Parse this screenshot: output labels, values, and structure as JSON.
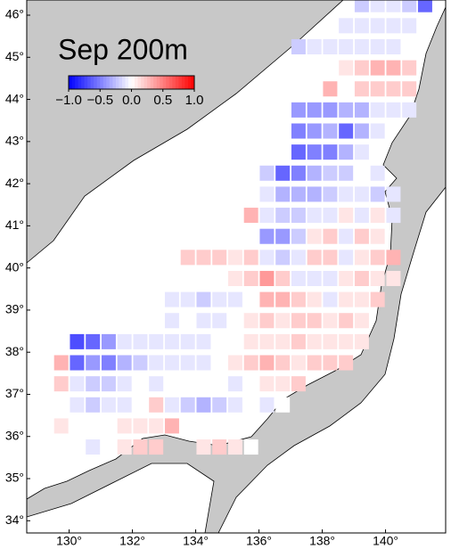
{
  "chart_data": {
    "type": "heatmap_map",
    "title": "Sep 200m",
    "xlim": [
      128.66,
      141.9
    ],
    "ylim": [
      33.71,
      46.36
    ],
    "xticks": [
      {
        "value": 130,
        "label": "130°"
      },
      {
        "value": 132,
        "label": "132°"
      },
      {
        "value": 134,
        "label": "134°"
      },
      {
        "value": 136,
        "label": "136°"
      },
      {
        "value": 138,
        "label": "138°"
      },
      {
        "value": 140,
        "label": "140°"
      }
    ],
    "yticks": [
      {
        "value": 34,
        "label": "34°"
      },
      {
        "value": 35,
        "label": "35°"
      },
      {
        "value": 36,
        "label": "36°"
      },
      {
        "value": 37,
        "label": "37°"
      },
      {
        "value": 38,
        "label": "38°"
      },
      {
        "value": 39,
        "label": "39°"
      },
      {
        "value": 40,
        "label": "40°"
      },
      {
        "value": 41,
        "label": "41°"
      },
      {
        "value": 42,
        "label": "42°"
      },
      {
        "value": 43,
        "label": "43°"
      },
      {
        "value": 44,
        "label": "44°"
      },
      {
        "value": 45,
        "label": "45°"
      },
      {
        "value": 46,
        "label": "46°"
      }
    ],
    "colormap": [
      "#0000ff",
      "#ffffff",
      "#ff0000"
    ],
    "clim": [
      -1,
      1
    ],
    "cticks": [
      {
        "value": -1,
        "label": "−1.0"
      },
      {
        "value": -0.5,
        "label": "−0.5"
      },
      {
        "value": 0,
        "label": "0.0"
      },
      {
        "value": 0.5,
        "label": "0.5"
      },
      {
        "value": 1,
        "label": "1.0"
      }
    ],
    "rows": [
      {
        "lat": 46.25,
        "lon_start": 139.25,
        "values": [
          -0.2,
          -0.1,
          -0.1,
          -0.2,
          -0.6
        ]
      },
      {
        "lat": 45.75,
        "lon_start": 138.75,
        "values": [
          -0.1,
          -0.1,
          -0.1,
          -0.1,
          -0.1
        ]
      },
      {
        "lat": 45.25,
        "lon_start": 137.25,
        "values": [
          -0.2,
          -0.1,
          -0.1,
          -0.1,
          -0.1,
          -0.1,
          -0.1
        ]
      },
      {
        "lat": 44.75,
        "lon_start": 138.75,
        "values": [
          0.1,
          0.2,
          0.3,
          0.3,
          0.2
        ]
      },
      {
        "lat": 44.25,
        "lon_start": 138.25,
        "values": [
          0.3,
          0,
          0.2,
          0.2,
          0.2,
          0.2
        ]
      },
      {
        "lat": 43.75,
        "lon_start": 137.25,
        "values": [
          -0.4,
          -0.4,
          -0.4,
          -0.3,
          -0.3,
          -0.1,
          -0.1,
          -0.1
        ]
      },
      {
        "lat": 43.25,
        "lon_start": 137.25,
        "values": [
          -0.5,
          -0.4,
          -0.3,
          -0.6,
          -0.3,
          -0.1
        ]
      },
      {
        "lat": 42.75,
        "lon_start": 137.25,
        "values": [
          -0.6,
          -0.5,
          -0.5,
          -0.3,
          -0.1
        ]
      },
      {
        "lat": 42.25,
        "lon_start": 136.25,
        "values": [
          -0.2,
          -0.6,
          -0.5,
          -0.3,
          -0.2,
          -0.2,
          0,
          -0.1
        ]
      },
      {
        "lat": 41.75,
        "lon_start": 136.25,
        "values": [
          -0.1,
          -0.3,
          -0.3,
          -0.3,
          -0.2,
          -0.1,
          -0.1,
          -0.2,
          -0.1
        ]
      },
      {
        "lat": 41.25,
        "lon_start": 135.75,
        "values": [
          0.3,
          -0.1,
          -0.2,
          -0.2,
          -0.1,
          -0.1,
          0.1,
          -0.1,
          0.1,
          -0.1
        ]
      },
      {
        "lat": 40.75,
        "lon_start": 135.75,
        "values": [
          0,
          -0.4,
          -0.4,
          -0.2,
          0.1,
          0.2,
          -0.1,
          0.2,
          0.1
        ]
      },
      {
        "lat": 40.25,
        "lon_start": 133.75,
        "values": [
          0.2,
          0.2,
          0.2,
          0.1,
          0.2,
          -0.1,
          -0.2,
          -0.1,
          0.2,
          0.2,
          -0.1,
          0.1,
          0.2,
          0.3
        ]
      },
      {
        "lat": 39.75,
        "lon_start": 133.75,
        "values": [
          0,
          0,
          0,
          0.1,
          0.2,
          0.4,
          0.2,
          -0.1,
          -0.1,
          -0.1,
          0.1,
          0.2,
          0.1,
          0.1
        ]
      },
      {
        "lat": 39.25,
        "lon_start": 132.25,
        "values": [
          0,
          0,
          -0.1,
          -0.1,
          -0.2,
          -0.1,
          -0.1,
          0,
          0.3,
          0.3,
          0.2,
          0.1,
          -0.1,
          0.1,
          0.1,
          0.2
        ]
      },
      {
        "lat": 38.75,
        "lon_start": 131.75,
        "values": [
          0,
          0,
          0,
          -0.1,
          0,
          -0.1,
          -0.1,
          0,
          0.1,
          0.2,
          0.1,
          0.2,
          0.2,
          0.1,
          0.2,
          0.1
        ]
      },
      {
        "lat": 38.25,
        "lon_start": 130.25,
        "values": [
          -0.7,
          -0.6,
          -0.4,
          -0.1,
          -0.1,
          -0.1,
          -0.1,
          -0.1,
          -0.1,
          0,
          0,
          0.1,
          0.1,
          0.1,
          0.2,
          0.1,
          0.1,
          0.1,
          0.1
        ]
      },
      {
        "lat": 37.75,
        "lon_start": 129.75,
        "values": [
          0.3,
          -0.6,
          -0.4,
          -0.5,
          -0.3,
          -0.2,
          -0.1,
          -0.1,
          -0.1,
          -0.1,
          0,
          0.1,
          0.2,
          0.3,
          0.2,
          0.1,
          0.2,
          0.2,
          0.2
        ]
      },
      {
        "lat": 37.25,
        "lon_start": 129.75,
        "values": [
          0.2,
          -0.1,
          -0.2,
          -0.2,
          -0.1,
          0,
          -0.1,
          0,
          0,
          0,
          0,
          -0.1,
          0,
          0.1,
          0.1,
          0.2
        ]
      },
      {
        "lat": 36.75,
        "lon_start": 129.75,
        "values": [
          0,
          -0.1,
          -0.2,
          -0.1,
          -0.1,
          0,
          0.2,
          -0.1,
          -0.2,
          -0.3,
          -0.2,
          -0.1,
          0,
          -0.1,
          0
        ]
      },
      {
        "lat": 36.25,
        "lon_start": 129.75,
        "values": [
          0.1,
          0,
          0,
          0,
          0.1,
          0.1,
          0.1,
          0.3
        ]
      },
      {
        "lat": 35.75,
        "lon_start": 130.25,
        "values": [
          0,
          -0.1,
          0,
          0.1,
          0.2,
          0.2,
          null,
          null,
          0.1,
          0.2,
          0.1,
          0
        ]
      }
    ]
  }
}
